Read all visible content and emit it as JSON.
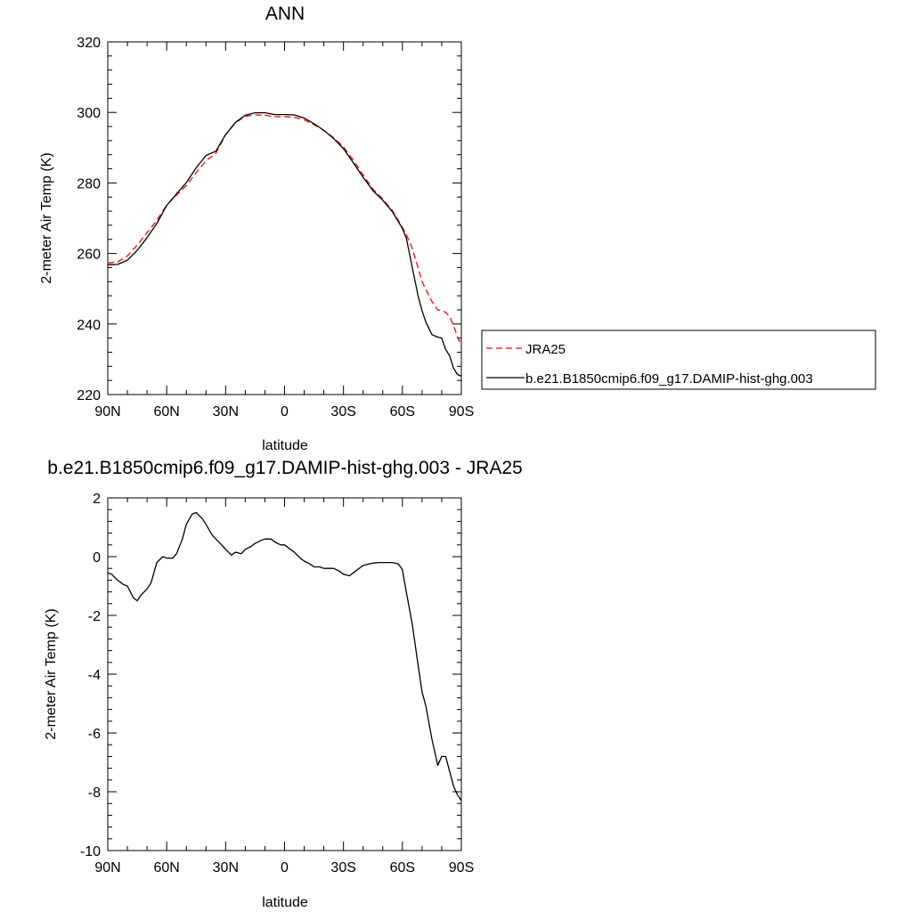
{
  "chart_data": [
    {
      "type": "line",
      "title": "ANN",
      "xlabel": "latitude",
      "ylabel": "2-meter Air Temp (K)",
      "xlim": [
        90,
        -90
      ],
      "ylim": [
        220,
        320
      ],
      "x_ticks": [
        90,
        60,
        30,
        0,
        -30,
        -60,
        -90
      ],
      "x_tick_labels": [
        "90N",
        "60N",
        "30N",
        "0",
        "30S",
        "60S",
        "90S"
      ],
      "y_ticks": [
        220,
        240,
        260,
        280,
        300,
        320
      ],
      "y_tick_labels": [
        "220",
        "240",
        "260",
        "280",
        "300",
        "320"
      ],
      "legend_position": "right",
      "series": [
        {
          "name": "JRA25",
          "color": "#ff0000",
          "dash": "dashed",
          "x": [
            90,
            85,
            80,
            75,
            70,
            65,
            60,
            55,
            50,
            45,
            40,
            35,
            30,
            25,
            20,
            15,
            10,
            5,
            0,
            -5,
            -10,
            -15,
            -20,
            -25,
            -30,
            -35,
            -40,
            -45,
            -50,
            -55,
            -60,
            -62,
            -65,
            -68,
            -70,
            -72,
            -75,
            -78,
            -80,
            -82,
            -84,
            -86,
            -88,
            -90
          ],
          "y": [
            257.3,
            257.6,
            259.3,
            262.4,
            265.9,
            269.4,
            273.7,
            276.6,
            279.3,
            282.9,
            286.3,
            288.4,
            293.6,
            297.1,
            298.9,
            299.3,
            299.2,
            298.8,
            298.8,
            298.6,
            297.9,
            296.5,
            294.9,
            292.8,
            290.2,
            286.4,
            282.3,
            278.2,
            275.4,
            272.1,
            267.4,
            265.4,
            261.4,
            255.9,
            252.0,
            249.8,
            246.4,
            244.0,
            243.8,
            243.3,
            242.1,
            239.5,
            236.5,
            233.8
          ]
        },
        {
          "name": "b.e21.B1850cmip6.f09_g17.DAMIP-hist-ghg.003",
          "color": "#000000",
          "dash": "solid",
          "x": [
            90,
            85,
            80,
            75,
            70,
            65,
            60,
            55,
            50,
            45,
            40,
            35,
            30,
            25,
            20,
            15,
            10,
            5,
            0,
            -5,
            -10,
            -15,
            -20,
            -25,
            -30,
            -35,
            -40,
            -45,
            -50,
            -55,
            -60,
            -62,
            -65,
            -68,
            -70,
            -72,
            -75,
            -78,
            -80,
            -82,
            -84,
            -86,
            -88,
            -90
          ],
          "y": [
            256.8,
            256.9,
            258.1,
            260.9,
            264.5,
            268.5,
            273.6,
            276.9,
            280.1,
            284.3,
            287.8,
            289.0,
            293.7,
            297.2,
            299.2,
            299.9,
            299.9,
            299.4,
            299.4,
            299.3,
            298.4,
            296.8,
            294.9,
            292.6,
            289.7,
            285.7,
            281.6,
            277.8,
            275.1,
            271.8,
            267.1,
            264.4,
            256.0,
            247.9,
            243.7,
            240.5,
            237.0,
            236.3,
            236.0,
            232.8,
            231.0,
            227.5,
            225.7,
            225.2
          ]
        }
      ]
    },
    {
      "type": "line",
      "title": "b.e21.B1850cmip6.f09_g17.DAMIP-hist-ghg.003 - JRA25",
      "xlabel": "latitude",
      "ylabel": "2-meter Air Temp (K)",
      "xlim": [
        90,
        -90
      ],
      "ylim": [
        -10,
        2
      ],
      "x_ticks": [
        90,
        60,
        30,
        0,
        -30,
        -60,
        -90
      ],
      "x_tick_labels": [
        "90N",
        "60N",
        "30N",
        "0",
        "30S",
        "60S",
        "90S"
      ],
      "y_ticks": [
        -10,
        -8,
        -6,
        -4,
        -2,
        0,
        2
      ],
      "y_tick_labels": [
        "-10",
        "-8",
        "-6",
        "-4",
        "-2",
        "0",
        "2"
      ],
      "series": [
        {
          "color": "#000000",
          "dash": "solid",
          "x": [
            90,
            88,
            85,
            82,
            80,
            77,
            75,
            73,
            70,
            68,
            65,
            62,
            60,
            57,
            55,
            52,
            50,
            47,
            45,
            42,
            40,
            37,
            35,
            32,
            30,
            27,
            25,
            22,
            20,
            17,
            15,
            12,
            10,
            7,
            5,
            2,
            0,
            -3,
            -5,
            -8,
            -10,
            -13,
            -15,
            -18,
            -20,
            -23,
            -25,
            -28,
            -30,
            -33,
            -35,
            -38,
            -40,
            -43,
            -45,
            -48,
            -50,
            -53,
            -55,
            -58,
            -60,
            -62,
            -65,
            -68,
            -70,
            -72,
            -75,
            -78,
            -80,
            -82,
            -84,
            -86,
            -88,
            -90
          ],
          "y": [
            -0.55,
            -0.6,
            -0.8,
            -0.95,
            -1.0,
            -1.4,
            -1.5,
            -1.3,
            -1.1,
            -0.9,
            -0.2,
            0.0,
            -0.05,
            -0.05,
            0.1,
            0.6,
            1.1,
            1.45,
            1.5,
            1.3,
            1.1,
            0.75,
            0.6,
            0.4,
            0.25,
            0.05,
            0.15,
            0.1,
            0.25,
            0.35,
            0.45,
            0.55,
            0.6,
            0.6,
            0.5,
            0.4,
            0.4,
            0.25,
            0.15,
            -0.05,
            -0.15,
            -0.25,
            -0.35,
            -0.35,
            -0.4,
            -0.4,
            -0.4,
            -0.5,
            -0.6,
            -0.65,
            -0.55,
            -0.4,
            -0.3,
            -0.25,
            -0.22,
            -0.2,
            -0.2,
            -0.2,
            -0.2,
            -0.25,
            -0.45,
            -1.2,
            -2.3,
            -3.7,
            -4.6,
            -5.1,
            -6.2,
            -7.1,
            -6.8,
            -6.8,
            -7.3,
            -7.8,
            -8.1,
            -8.3
          ]
        }
      ]
    }
  ]
}
